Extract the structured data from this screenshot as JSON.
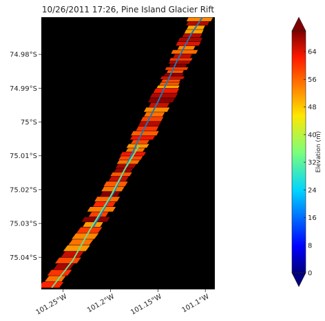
{
  "chart_data": {
    "type": "heatmap",
    "title": "10/26/2011 17:26, Pine Island Glacier Rift",
    "xlabel": "",
    "ylabel": "",
    "x_ticks": [
      {
        "value": -101.25,
        "label": "101.25°W"
      },
      {
        "value": -101.2,
        "label": "101.2°W"
      },
      {
        "value": -101.15,
        "label": "101.15°W"
      },
      {
        "value": -101.1,
        "label": "101.1°W"
      }
    ],
    "y_ticks": [
      {
        "value": -74.98,
        "label": "74.98°S"
      },
      {
        "value": -74.99,
        "label": "74.99°S"
      },
      {
        "value": -75.0,
        "label": "75°S"
      },
      {
        "value": -75.01,
        "label": "75.01°S"
      },
      {
        "value": -75.02,
        "label": "75.02°S"
      },
      {
        "value": -75.03,
        "label": "75.03°S"
      },
      {
        "value": -75.04,
        "label": "75.04°S"
      }
    ],
    "xlim": [
      -101.273,
      -101.09
    ],
    "ylim": [
      -75.0495,
      -74.969
    ],
    "background_color": "#000000",
    "colormap": "jet",
    "colorbar": {
      "label": "Elevation (m)",
      "range": [
        0,
        70
      ],
      "ticks": [
        0,
        8,
        16,
        24,
        32,
        40,
        48,
        56,
        64
      ],
      "extend": "both"
    },
    "swath": {
      "center_line": [
        {
          "lon": -101.265,
          "lat": -75.049
        },
        {
          "lon": -101.22,
          "lat": -75.031
        },
        {
          "lon": -101.19,
          "lat": -75.016
        },
        {
          "lon": -101.165,
          "lat": -75.004
        },
        {
          "lon": -101.14,
          "lat": -74.99
        },
        {
          "lon": -101.125,
          "lat": -74.981
        },
        {
          "lon": -101.105,
          "lat": -74.969
        }
      ],
      "width_deg": 0.022,
      "elevation_min": 40,
      "elevation_max": 70
    },
    "series": [
      {
        "color": "#1f77b4",
        "points": [
          {
            "lon": -101.218,
            "lat": -75.031
          },
          {
            "lon": -101.195,
            "lat": -75.02
          },
          {
            "lon": -101.17,
            "lat": -75.005
          },
          {
            "lon": -101.15,
            "lat": -74.994
          },
          {
            "lon": -101.13,
            "lat": -74.982
          },
          {
            "lon": -101.115,
            "lat": -74.974
          },
          {
            "lon": -101.103,
            "lat": -74.969
          }
        ]
      },
      {
        "color": "#6fe08a",
        "points": [
          {
            "lon": -101.262,
            "lat": -75.049
          },
          {
            "lon": -101.24,
            "lat": -75.041
          },
          {
            "lon": -101.222,
            "lat": -75.032
          },
          {
            "lon": -101.2,
            "lat": -75.022
          },
          {
            "lon": -101.185,
            "lat": -75.014
          },
          {
            "lon": -101.17,
            "lat": -75.007
          }
        ]
      }
    ]
  }
}
